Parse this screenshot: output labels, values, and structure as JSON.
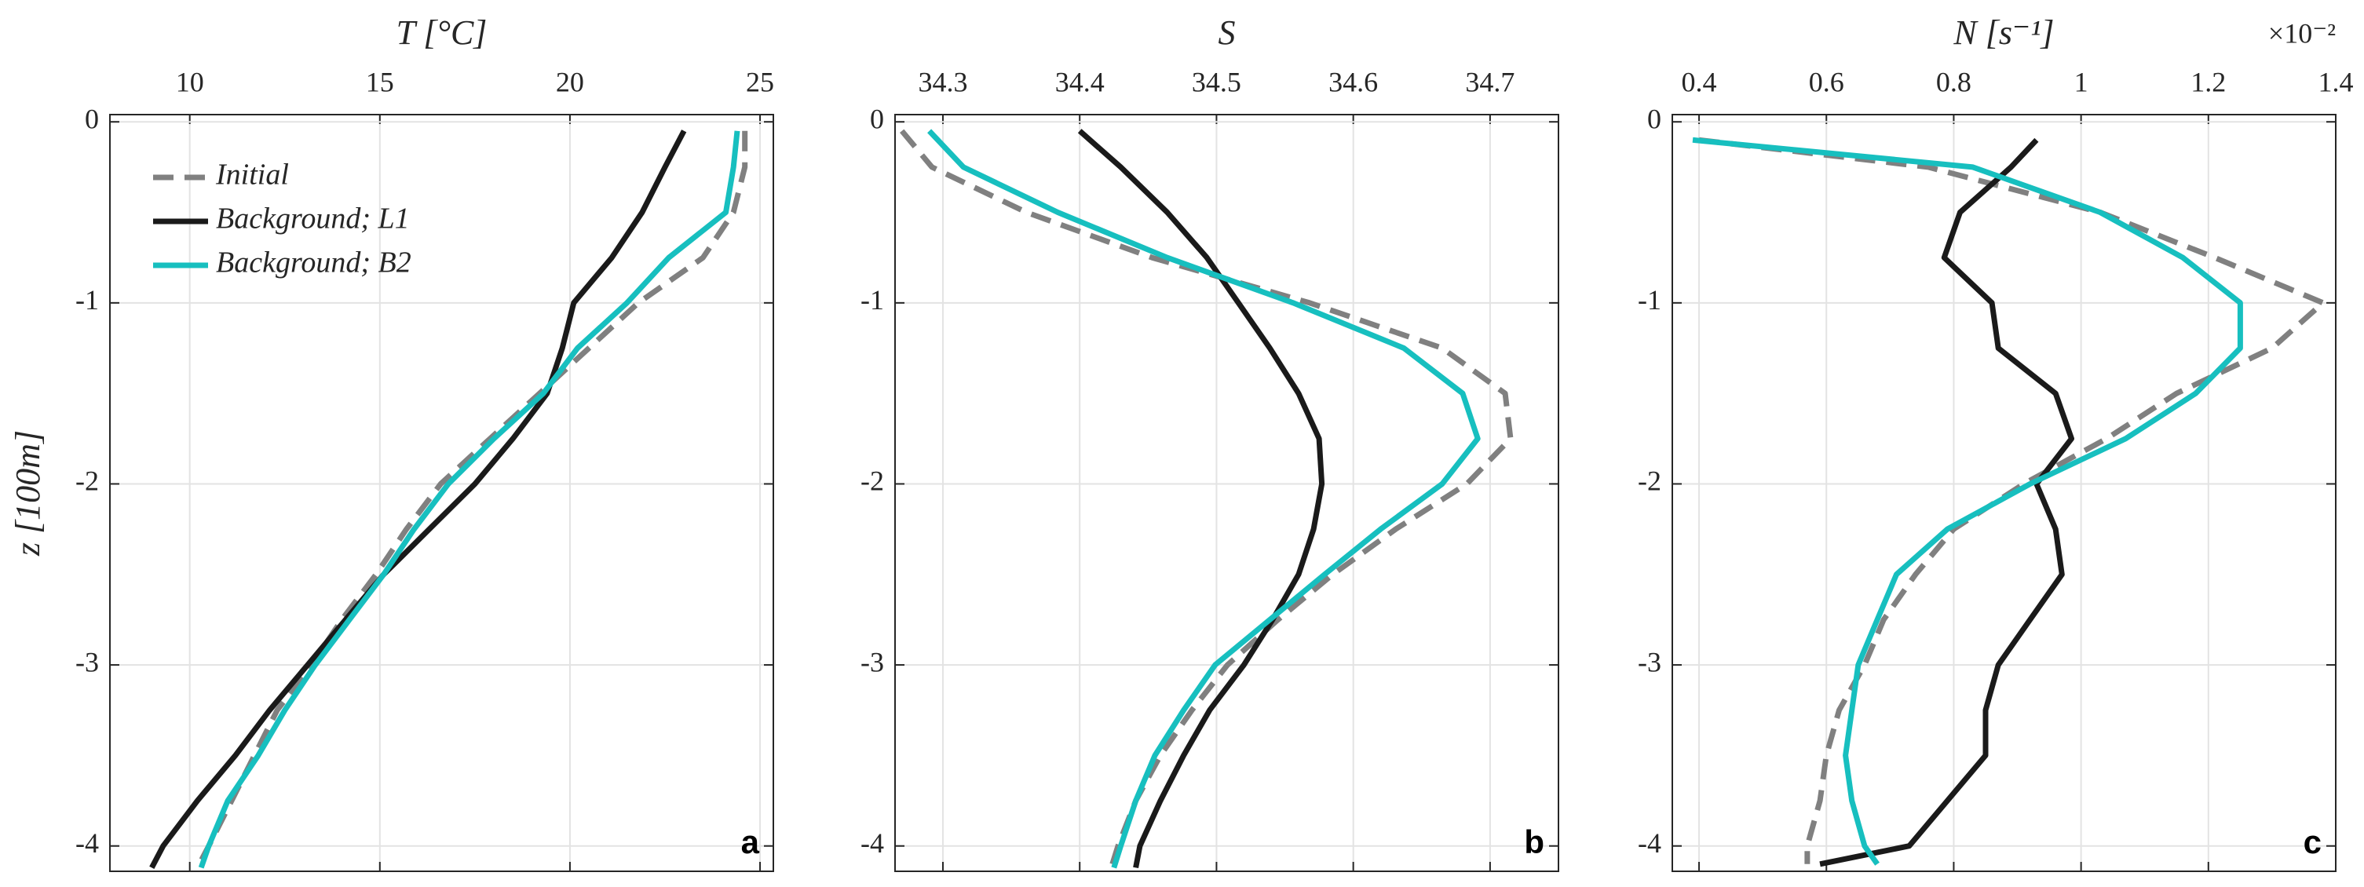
{
  "chart_data": [
    {
      "type": "line",
      "x_label": "T [°C]",
      "y_label": "z [100m]",
      "panel_label": "a",
      "xlim": [
        7.9,
        25.35
      ],
      "xticks": [
        10,
        15,
        20,
        25
      ],
      "ylim": [
        -4.14,
        0.04
      ],
      "yticks": [
        0,
        -1,
        -2,
        -3,
        -4
      ],
      "grid": true,
      "legend": "upper left",
      "y": [
        -0.05,
        -0.25,
        -0.5,
        -0.75,
        -1,
        -1.25,
        -1.5,
        -1.75,
        -2,
        -2.25,
        -2.5,
        -2.75,
        -3,
        -3.25,
        -3.5,
        -3.75,
        -4,
        -4.12
      ],
      "series": [
        {
          "name": "Initial",
          "color": "#808080",
          "line_style": "dashed",
          "values": [
            24.6,
            24.6,
            24.3,
            23.5,
            21.8,
            20.5,
            19.2,
            17.9,
            16.6,
            15.7,
            14.9,
            14.0,
            13.2,
            12.3,
            11.7,
            11.1,
            10.5,
            10.2
          ]
        },
        {
          "name": "Background; L1",
          "color": "#1a1a1a",
          "line_style": "solid",
          "values": [
            23.0,
            22.5,
            21.9,
            21.1,
            20.1,
            19.8,
            19.4,
            18.5,
            17.5,
            16.3,
            15.1,
            14.1,
            13.1,
            12.1,
            11.2,
            10.2,
            9.3,
            9.0
          ]
        },
        {
          "name": "Background; B2",
          "color": "#17bfbf",
          "line_style": "solid",
          "values": [
            24.4,
            24.3,
            24.1,
            22.6,
            21.5,
            20.2,
            19.3,
            18.0,
            16.8,
            15.9,
            15.1,
            14.2,
            13.3,
            12.5,
            11.8,
            11.0,
            10.5,
            10.3
          ]
        }
      ]
    },
    {
      "type": "line",
      "x_label": "S",
      "panel_label": "b",
      "xlim": [
        34.265,
        34.75
      ],
      "xticks": [
        34.3,
        34.4,
        34.5,
        34.6,
        34.7
      ],
      "ylim": [
        -4.14,
        0.04
      ],
      "yticks": [
        0,
        -1,
        -2,
        -3,
        -4
      ],
      "grid": true,
      "y": [
        -0.05,
        -0.25,
        -0.5,
        -0.75,
        -1,
        -1.25,
        -1.5,
        -1.75,
        -2,
        -2.25,
        -2.5,
        -2.75,
        -3,
        -3.25,
        -3.5,
        -3.75,
        -4,
        -4.12
      ],
      "series": [
        {
          "color": "#808080",
          "line_style": "dashed",
          "values": [
            34.27,
            34.292,
            34.361,
            34.453,
            34.568,
            34.665,
            34.711,
            34.715,
            34.683,
            34.631,
            34.585,
            34.545,
            34.508,
            34.482,
            34.459,
            34.441,
            34.428,
            34.423
          ]
        },
        {
          "color": "#1a1a1a",
          "line_style": "solid",
          "values": [
            34.4,
            34.43,
            34.464,
            34.493,
            34.516,
            34.539,
            34.56,
            34.575,
            34.577,
            34.571,
            34.56,
            34.541,
            34.52,
            34.495,
            34.476,
            34.459,
            34.444,
            34.441
          ]
        },
        {
          "color": "#17bfbf",
          "line_style": "solid",
          "values": [
            34.29,
            34.315,
            34.384,
            34.464,
            34.556,
            34.637,
            34.68,
            34.691,
            34.665,
            34.62,
            34.579,
            34.539,
            34.499,
            34.476,
            34.455,
            34.441,
            34.43,
            34.425
          ]
        }
      ]
    },
    {
      "type": "line",
      "x_label": "N [s⁻¹]",
      "x_exponent": "×10⁻²",
      "panel_label": "c",
      "xlim": [
        0.358,
        1.4
      ],
      "xticks": [
        0.4,
        0.6,
        0.8,
        1,
        1.2,
        1.4
      ],
      "ylim": [
        -4.14,
        0.04
      ],
      "yticks": [
        0,
        -1,
        -2,
        -3,
        -4
      ],
      "grid": true,
      "y": [
        -0.1,
        -0.25,
        -0.5,
        -0.75,
        -1,
        -1.25,
        -1.5,
        -1.75,
        -2,
        -2.25,
        -2.5,
        -2.75,
        -3,
        -3.25,
        -3.5,
        -3.75,
        -4,
        -4.1
      ],
      "series": [
        {
          "color": "#808080",
          "line_style": "dashed",
          "values": [
            0.4,
            0.76,
            1.03,
            1.21,
            1.38,
            1.3,
            1.15,
            1.04,
            0.91,
            0.8,
            0.74,
            0.69,
            0.66,
            0.62,
            0.6,
            0.59,
            0.57,
            0.57
          ]
        },
        {
          "color": "#1a1a1a",
          "line_style": "solid",
          "values": [
            0.93,
            0.89,
            0.81,
            0.785,
            0.86,
            0.87,
            0.96,
            0.985,
            0.93,
            0.96,
            0.97,
            0.92,
            0.87,
            0.85,
            0.85,
            0.79,
            0.73,
            0.59
          ]
        },
        {
          "color": "#17bfbf",
          "line_style": "solid",
          "values": [
            0.39,
            0.83,
            1.03,
            1.16,
            1.25,
            1.25,
            1.18,
            1.07,
            0.92,
            0.79,
            0.71,
            0.68,
            0.65,
            0.64,
            0.63,
            0.64,
            0.66,
            0.68
          ]
        }
      ]
    }
  ]
}
